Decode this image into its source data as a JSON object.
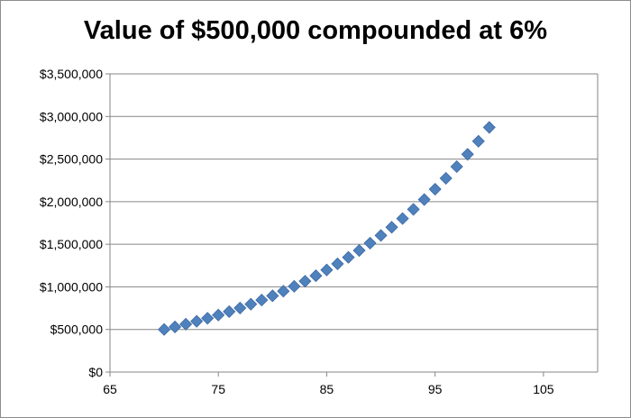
{
  "chart_data": {
    "type": "scatter",
    "title": "Value of $500,000 compounded at 6%",
    "xlabel": "",
    "ylabel": "",
    "xlim": [
      65,
      110
    ],
    "ylim": [
      0,
      3500000
    ],
    "x_ticks": [
      65,
      75,
      85,
      95,
      105
    ],
    "x_tick_labels": [
      "65",
      "75",
      "85",
      "95",
      "105"
    ],
    "y_ticks": [
      0,
      500000,
      1000000,
      1500000,
      2000000,
      2500000,
      3000000,
      3500000
    ],
    "y_tick_labels": [
      "$0",
      "$500,000",
      "$1,000,000",
      "$1,500,000",
      "$2,000,000",
      "$2,500,000",
      "$3,000,000",
      "$3,500,000"
    ],
    "grid": true,
    "legend": "none",
    "marker": "diamond",
    "color": "#4F81BD",
    "series": [
      {
        "x": [
          70,
          71,
          72,
          73,
          74,
          75,
          76,
          77,
          78,
          79,
          80,
          81,
          82,
          83,
          84,
          85,
          86,
          87,
          88,
          89,
          90,
          91,
          92,
          93,
          94,
          95,
          96,
          97,
          98,
          99,
          100
        ],
        "values": [
          500000,
          530000,
          561800,
          595508,
          631238,
          669113,
          709260,
          751815,
          796924,
          844740,
          895424,
          949149,
          1006098,
          1066464,
          1130452,
          1198279,
          1270176,
          1346386,
          1427169,
          1512799,
          1603567,
          1699781,
          1801768,
          1909874,
          2024466,
          2145934,
          2274690,
          2411171,
          2555841,
          2709192,
          2871744
        ]
      }
    ]
  }
}
